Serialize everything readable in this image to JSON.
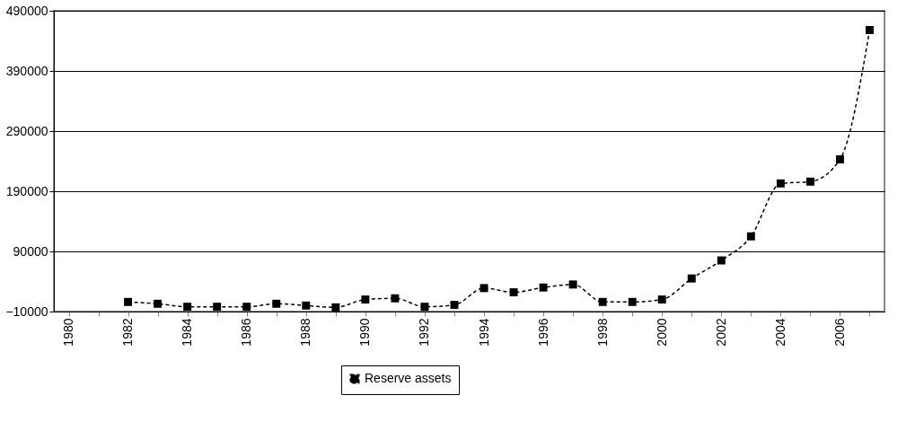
{
  "chart_data": {
    "type": "line",
    "categories": [
      "1980",
      null,
      "1982",
      null,
      "1984",
      null,
      "1986",
      null,
      "1988",
      null,
      "1990",
      null,
      "1992",
      null,
      "1994",
      null,
      "1996",
      null,
      "1998",
      null,
      "2000",
      null,
      "2002",
      null,
      "2004",
      null,
      "2006",
      null
    ],
    "series": [
      {
        "name": "Reserve assets",
        "color": "#000000",
        "values": [
          null,
          null,
          6000,
          3000,
          -2000,
          -2000,
          -2000,
          3000,
          0,
          -3000,
          10000,
          12000,
          -2000,
          1000,
          29000,
          22000,
          30000,
          35000,
          6000,
          6000,
          10000,
          45000,
          75000,
          115000,
          203000,
          206000,
          243000,
          458000
        ]
      }
    ],
    "ylim": [
      -10000,
      490000
    ],
    "yticks": [
      -10000,
      90000,
      190000,
      290000,
      390000,
      490000
    ],
    "grid": "y",
    "legend": "bottom",
    "marker": "square",
    "line_style": "dashed"
  }
}
